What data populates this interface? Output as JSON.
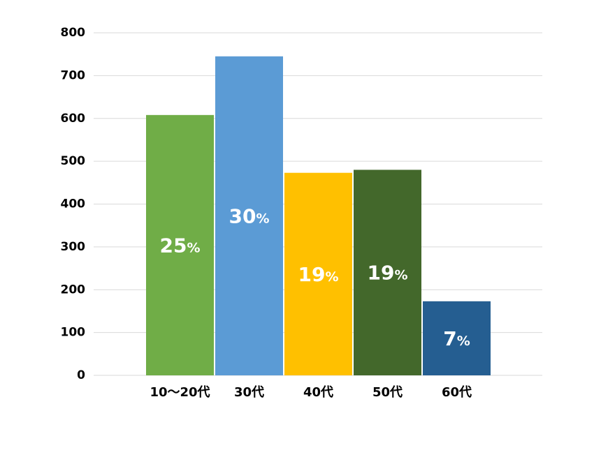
{
  "chart_data": {
    "type": "bar",
    "title": "",
    "xlabel": "",
    "ylabel": "",
    "ylim": [
      0,
      800
    ],
    "yticks": [
      0,
      100,
      200,
      300,
      400,
      500,
      600,
      700,
      800
    ],
    "grid": true,
    "categories": [
      "10～20代",
      "30代",
      "40代",
      "50代",
      "60代"
    ],
    "values": [
      608,
      745,
      473,
      480,
      173
    ],
    "colors": [
      "#70ad47",
      "#5b9bd5",
      "#ffc000",
      "#43682b",
      "#255e91"
    ],
    "data_labels": [
      {
        "num": "25",
        "unit": "%"
      },
      {
        "num": "30",
        "unit": "%"
      },
      {
        "num": "19",
        "unit": "%"
      },
      {
        "num": "19",
        "unit": "%"
      },
      {
        "num": "7",
        "unit": "%"
      }
    ]
  }
}
